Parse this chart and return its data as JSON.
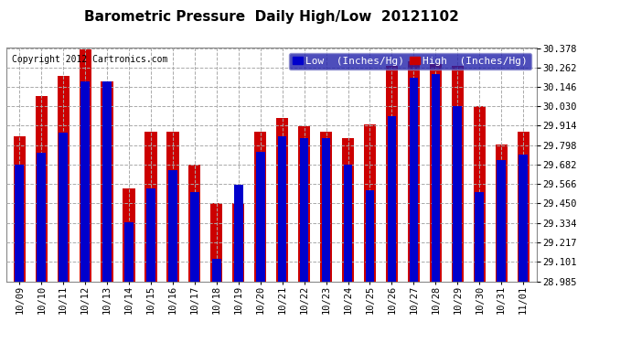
{
  "title": "Barometric Pressure  Daily High/Low  20121102",
  "copyright": "Copyright 2012 Cartronics.com",
  "legend_low": "Low  (Inches/Hg)",
  "legend_high": "High  (Inches/Hg)",
  "dates": [
    "10/09",
    "10/10",
    "10/11",
    "10/12",
    "10/13",
    "10/14",
    "10/15",
    "10/16",
    "10/17",
    "10/18",
    "10/19",
    "10/20",
    "10/21",
    "10/22",
    "10/23",
    "10/24",
    "10/25",
    "10/26",
    "10/27",
    "10/28",
    "10/29",
    "10/30",
    "10/31",
    "11/01"
  ],
  "low_values": [
    29.68,
    29.75,
    29.87,
    30.18,
    30.18,
    29.34,
    29.54,
    29.65,
    29.52,
    29.12,
    29.56,
    29.76,
    29.85,
    29.84,
    29.84,
    29.68,
    29.53,
    29.97,
    30.2,
    30.22,
    30.03,
    29.52,
    29.71,
    29.74
  ],
  "high_values": [
    29.85,
    30.09,
    30.21,
    30.37,
    30.18,
    29.54,
    29.88,
    29.88,
    29.68,
    29.45,
    29.45,
    29.88,
    29.96,
    29.91,
    29.88,
    29.84,
    29.92,
    30.27,
    30.3,
    30.28,
    30.27,
    30.03,
    29.8,
    29.88
  ],
  "ymin": 28.985,
  "ymax": 30.378,
  "ytick_values": [
    28.985,
    29.101,
    29.217,
    29.334,
    29.45,
    29.566,
    29.682,
    29.798,
    29.914,
    30.03,
    30.146,
    30.262,
    30.378
  ],
  "ytick_labels": [
    "28.985",
    "29.101",
    "29.217",
    "29.334",
    "29.450",
    "29.566",
    "29.682",
    "29.798",
    "29.914",
    "30.030",
    "30.146",
    "30.262",
    "30.378"
  ],
  "bar_color_low": "#0000cc",
  "bar_color_high": "#cc0000",
  "bg_color": "#ffffff",
  "grid_color": "#aaaaaa",
  "legend_bg_color": "#2222aa",
  "title_fontsize": 11,
  "copyright_fontsize": 7,
  "tick_fontsize": 7.5,
  "legend_fontsize": 8
}
